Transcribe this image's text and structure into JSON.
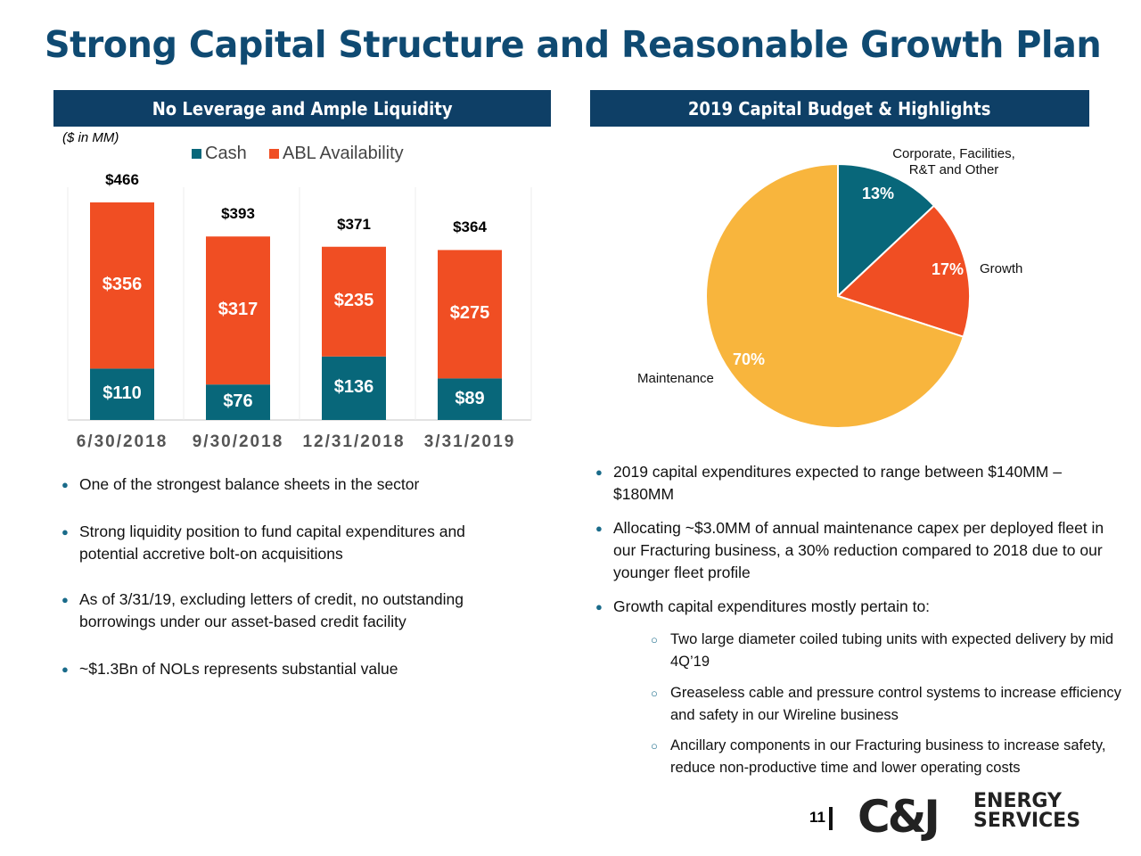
{
  "title": "Strong Capital Structure and Reasonable Growth Plan",
  "left_header": "No Leverage and Ample Liquidity",
  "right_header": "2019 Capital Budget & Highlights",
  "colors": {
    "cash": "#08677a",
    "abl": "#f04e23",
    "maintenance": "#f8b53d",
    "header": "#0e3f66",
    "title": "#0f4a72"
  },
  "chart_data": [
    {
      "type": "bar",
      "stacked": true,
      "note": "($ in MM)",
      "categories": [
        "6/30/2018",
        "9/30/2018",
        "12/31/2018",
        "3/31/2019"
      ],
      "series": [
        {
          "name": "Cash",
          "values": [
            110,
            76,
            136,
            89
          ]
        },
        {
          "name": "ABL Availability",
          "values": [
            356,
            317,
            235,
            275
          ]
        }
      ],
      "value_labels": {
        "Cash": [
          "$110",
          "$76",
          "$136",
          "$89"
        ],
        "ABL Availability": [
          "$356",
          "$317",
          "$235",
          "$275"
        ]
      },
      "totals": [
        "$466",
        "$393",
        "$371",
        "$364"
      ],
      "legend": "top",
      "grid": false
    },
    {
      "type": "pie",
      "slices": [
        {
          "label": "Corporate, Facilities, R&T and Other",
          "value": 13,
          "text": "13%"
        },
        {
          "label": "Growth",
          "value": 17,
          "text": "17%"
        },
        {
          "label": "Maintenance",
          "value": 70,
          "text": "70%"
        }
      ]
    }
  ],
  "left_bullets": [
    "One of the strongest balance sheets in the sector",
    "Strong liquidity position to fund capital expenditures and potential accretive bolt-on acquisitions",
    "As of 3/31/19, excluding letters of credit, no outstanding borrowings under our asset-based credit facility",
    "~$1.3Bn of NOLs represents substantial value"
  ],
  "right_bullets": [
    "2019 capital expenditures expected to range between $140MM – $180MM",
    "Allocating ~$3.0MM of annual maintenance capex per deployed fleet in our Fracturing business, a 30% reduction compared to 2018 due to our younger fleet profile",
    "Growth capital expenditures mostly pertain to:"
  ],
  "sub_bullets": [
    "Two large diameter coiled tubing units with expected delivery by mid 4Q’19",
    "Greaseless cable and pressure control systems to increase efficiency and safety in our Wireline business",
    "Ancillary components in our Fracturing business to increase safety, reduce non-productive time and lower operating costs"
  ],
  "footer": {
    "page": "11",
    "logo_main": "C&J",
    "logo_sub1": "ENERGY",
    "logo_sub2": "SERVICES"
  }
}
